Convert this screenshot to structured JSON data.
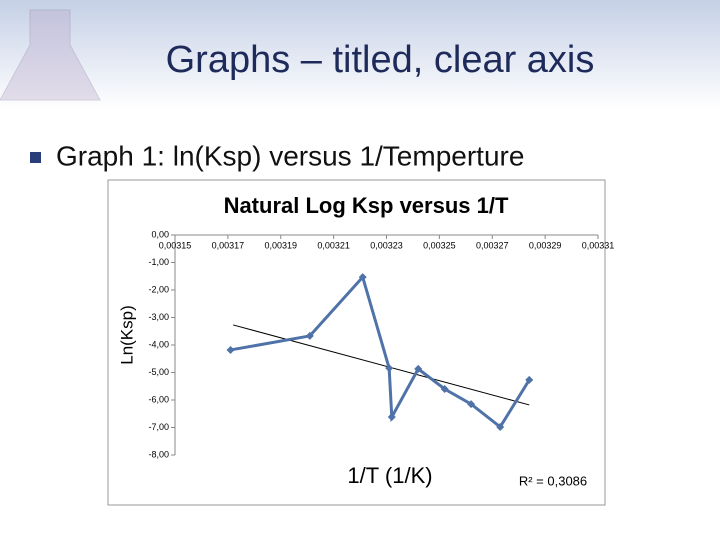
{
  "slide": {
    "title": "Graphs – titled, clear axis",
    "bullet": "Graph 1: ln(Ksp) versus 1/Temperture"
  },
  "chart_data": {
    "type": "line",
    "title": "Natural Log Ksp versus 1/T",
    "x_label": "1/T (1/K)",
    "y_label": "Ln(Ksp)",
    "x": [
      0.003171,
      0.003201,
      0.003221,
      0.003231,
      0.003232,
      0.003242,
      0.003252,
      0.003262,
      0.003273,
      0.003284
    ],
    "values": [
      -4.18,
      -3.67,
      -1.53,
      -4.84,
      -6.62,
      -4.87,
      -5.6,
      -6.15,
      -6.98,
      -5.27
    ],
    "color": "#4f72a8",
    "trendline": {
      "x": [
        0.003172,
        0.003284
      ],
      "y": [
        -3.27,
        -6.18
      ],
      "color": "#000000"
    },
    "annotation": "R² = 0,3086",
    "xlim": [
      0.00315,
      0.00331
    ],
    "ylim": [
      -8,
      0
    ],
    "xticks": [
      {
        "value": 0.00315,
        "label": "0,00315"
      },
      {
        "value": 0.00317,
        "label": "0,00317"
      },
      {
        "value": 0.00319,
        "label": "0,00319"
      },
      {
        "value": 0.00321,
        "label": "0,00321"
      },
      {
        "value": 0.00323,
        "label": "0,00323"
      },
      {
        "value": 0.00325,
        "label": "0,00325"
      },
      {
        "value": 0.00327,
        "label": "0,00327"
      },
      {
        "value": 0.00329,
        "label": "0,00329"
      },
      {
        "value": 0.00331,
        "label": "0,00331"
      }
    ],
    "yticks": [
      {
        "value": 0,
        "label": "0,00"
      },
      {
        "value": -1,
        "label": "-1,00"
      },
      {
        "value": -2,
        "label": "-2,00"
      },
      {
        "value": -3,
        "label": "-3,00"
      },
      {
        "value": -4,
        "label": "-4,00"
      },
      {
        "value": -5,
        "label": "-5,00"
      },
      {
        "value": -6,
        "label": "-6,00"
      },
      {
        "value": -7,
        "label": "-7,00"
      },
      {
        "value": -8,
        "label": "-8,00"
      }
    ],
    "grid": false
  }
}
